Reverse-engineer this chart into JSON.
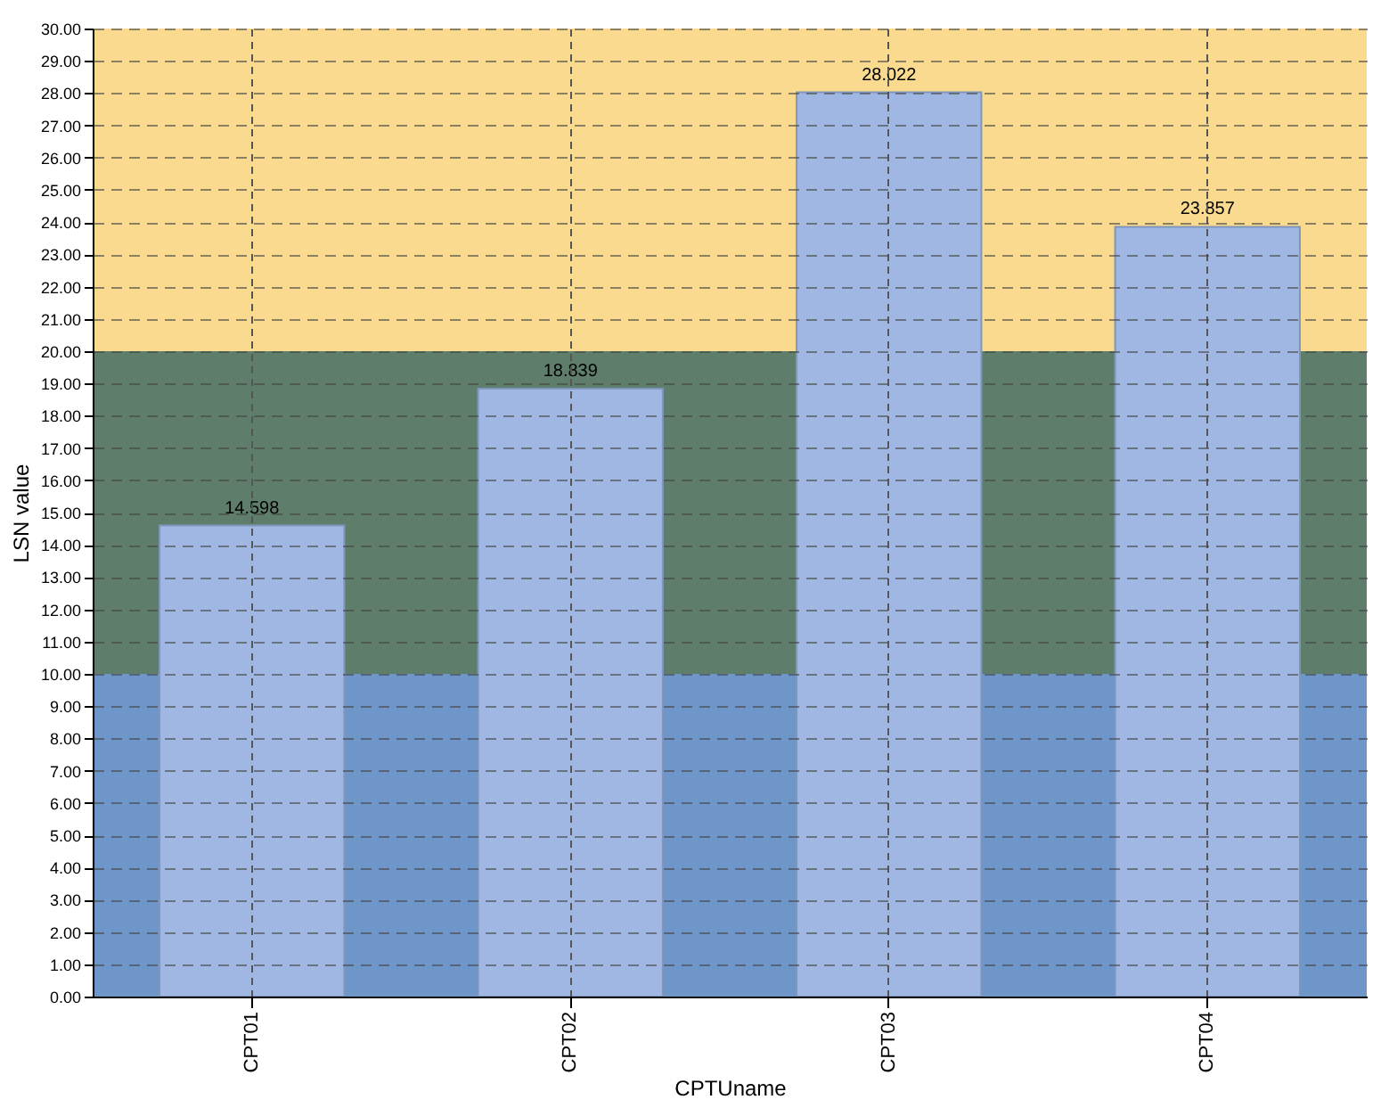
{
  "chart_data": {
    "type": "bar",
    "xlabel": "CPTUname",
    "ylabel": "LSN value",
    "categories": [
      "CPT01",
      "CPT02",
      "CPT03",
      "CPT04"
    ],
    "values": [
      14.598,
      18.839,
      28.022,
      23.857
    ],
    "color": "#9fb7e2",
    "data_labels": true,
    "ylim": [
      0,
      30
    ],
    "yticks": [
      {
        "value": 0,
        "label": "0.00"
      },
      {
        "value": 1,
        "label": "1.00"
      },
      {
        "value": 2,
        "label": "2.00"
      },
      {
        "value": 3,
        "label": "3.00"
      },
      {
        "value": 4,
        "label": "4.00"
      },
      {
        "value": 5,
        "label": "5.00"
      },
      {
        "value": 6,
        "label": "6.00"
      },
      {
        "value": 7,
        "label": "7.00"
      },
      {
        "value": 8,
        "label": "8.00"
      },
      {
        "value": 9,
        "label": "9.00"
      },
      {
        "value": 10,
        "label": "10.00"
      },
      {
        "value": 11,
        "label": "11.00"
      },
      {
        "value": 12,
        "label": "12.00"
      },
      {
        "value": 13,
        "label": "13.00"
      },
      {
        "value": 14,
        "label": "14.00"
      },
      {
        "value": 15,
        "label": "15.00"
      },
      {
        "value": 16,
        "label": "16.00"
      },
      {
        "value": 17,
        "label": "17.00"
      },
      {
        "value": 18,
        "label": "18.00"
      },
      {
        "value": 19,
        "label": "19.00"
      },
      {
        "value": 20,
        "label": "20.00"
      },
      {
        "value": 21,
        "label": "21.00"
      },
      {
        "value": 22,
        "label": "22.00"
      },
      {
        "value": 23,
        "label": "23.00"
      },
      {
        "value": 24,
        "label": "24.00"
      },
      {
        "value": 25,
        "label": "25.00"
      },
      {
        "value": 26,
        "label": "26.00"
      },
      {
        "value": 27,
        "label": "27.00"
      },
      {
        "value": 28,
        "label": "28.00"
      },
      {
        "value": 29,
        "label": "29.00"
      },
      {
        "value": 30,
        "label": "30.00"
      }
    ],
    "grid": true,
    "bands": [
      {
        "axis": "y",
        "from": 0,
        "to": 10,
        "color": "#6e96c9"
      },
      {
        "axis": "y",
        "from": 10,
        "to": 20,
        "color": "#5e7d6b"
      },
      {
        "axis": "y",
        "from": 20,
        "to": 30,
        "color": "#f9da8e"
      }
    ]
  }
}
